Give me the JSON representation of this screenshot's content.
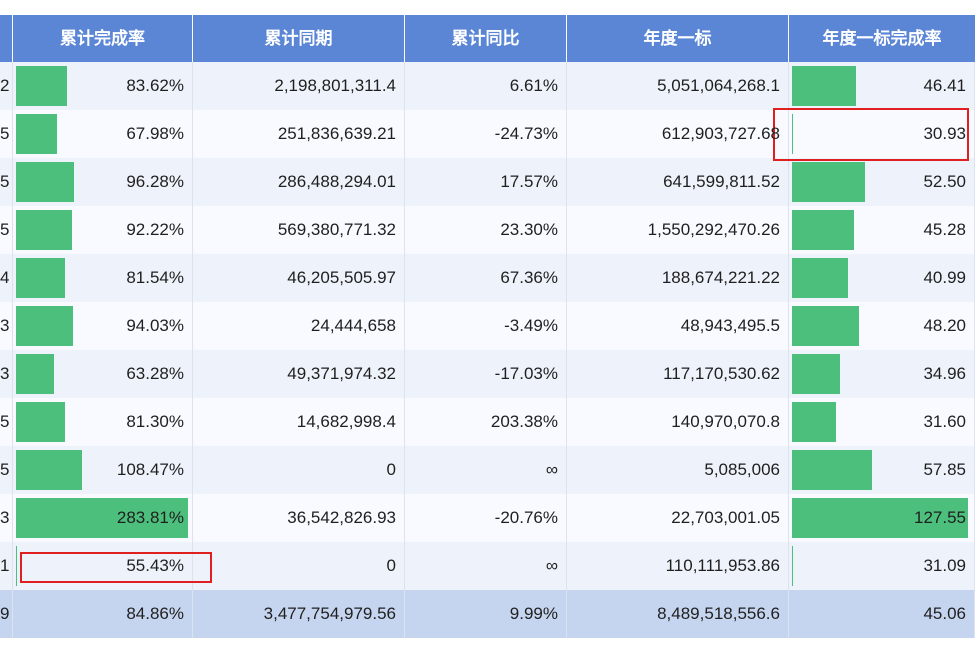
{
  "header": {
    "cols": [
      "累计完成率",
      "累计同期",
      "累计同比",
      "年度一标",
      "年度一标完成率"
    ]
  },
  "rows": [
    {
      "lead": "2",
      "rate": "83.62%",
      "rate_fill": 0.295,
      "prev": "2,198,801,311.4",
      "yoy": "6.61%",
      "target": "5,051,064,268.1",
      "trate": "46.41",
      "trate_fill": 0.364
    },
    {
      "lead": "5",
      "rate": "67.98%",
      "rate_fill": 0.24,
      "prev": "251,836,639.21",
      "yoy": "-24.73%",
      "target": "612,903,727.68",
      "trate": "30.93",
      "trate_fill": 0.0
    },
    {
      "lead": "5",
      "rate": "96.28%",
      "rate_fill": 0.339,
      "prev": "286,488,294.01",
      "yoy": "17.57%",
      "target": "641,599,811.52",
      "trate": "52.50",
      "trate_fill": 0.412
    },
    {
      "lead": "5",
      "rate": "92.22%",
      "rate_fill": 0.325,
      "prev": "569,380,771.32",
      "yoy": "23.30%",
      "target": "1,550,292,470.26",
      "trate": "45.28",
      "trate_fill": 0.355
    },
    {
      "lead": "4",
      "rate": "81.54%",
      "rate_fill": 0.287,
      "prev": "46,205,505.97",
      "yoy": "67.36%",
      "target": "188,674,221.22",
      "trate": "40.99",
      "trate_fill": 0.321
    },
    {
      "lead": "3",
      "rate": "94.03%",
      "rate_fill": 0.331,
      "prev": "24,444,658",
      "yoy": "-3.49%",
      "target": "48,943,495.5",
      "trate": "48.20",
      "trate_fill": 0.378
    },
    {
      "lead": "3",
      "rate": "63.28%",
      "rate_fill": 0.223,
      "prev": "49,371,974.32",
      "yoy": "-17.03%",
      "target": "117,170,530.62",
      "trate": "34.96",
      "trate_fill": 0.274
    },
    {
      "lead": "5",
      "rate": "81.30%",
      "rate_fill": 0.286,
      "prev": "14,682,998.4",
      "yoy": "203.38%",
      "target": "140,970,070.8",
      "trate": "31.60",
      "trate_fill": 0.248
    },
    {
      "lead": "5",
      "rate": "108.47%",
      "rate_fill": 0.382,
      "prev": "0",
      "yoy": "∞",
      "target": "5,085,006",
      "trate": "57.85",
      "trate_fill": 0.454
    },
    {
      "lead": "3",
      "rate": "283.81%",
      "rate_fill": 1.0,
      "prev": "36,542,826.93",
      "yoy": "-20.76%",
      "target": "22,703,001.05",
      "trate": "127.55",
      "trate_fill": 1.0
    },
    {
      "lead": "1",
      "rate": "55.43%",
      "rate_fill": 0.0,
      "prev": "0",
      "yoy": "∞",
      "target": "110,111,953.86",
      "trate": "31.09",
      "trate_fill": 0.0
    }
  ],
  "total": {
    "lead": "9",
    "rate": "84.86%",
    "prev": "3,477,754,979.56",
    "yoy": "9.99%",
    "target": "8,489,518,556.6",
    "trate": "45.06"
  },
  "colors": {
    "header_bg": "#5b86d6",
    "bar": "#4cbf7c",
    "row_odd": "#eef3fb",
    "row_even": "#f8faff",
    "total_bg": "#c6d5ef",
    "highlight": "#e02020"
  }
}
